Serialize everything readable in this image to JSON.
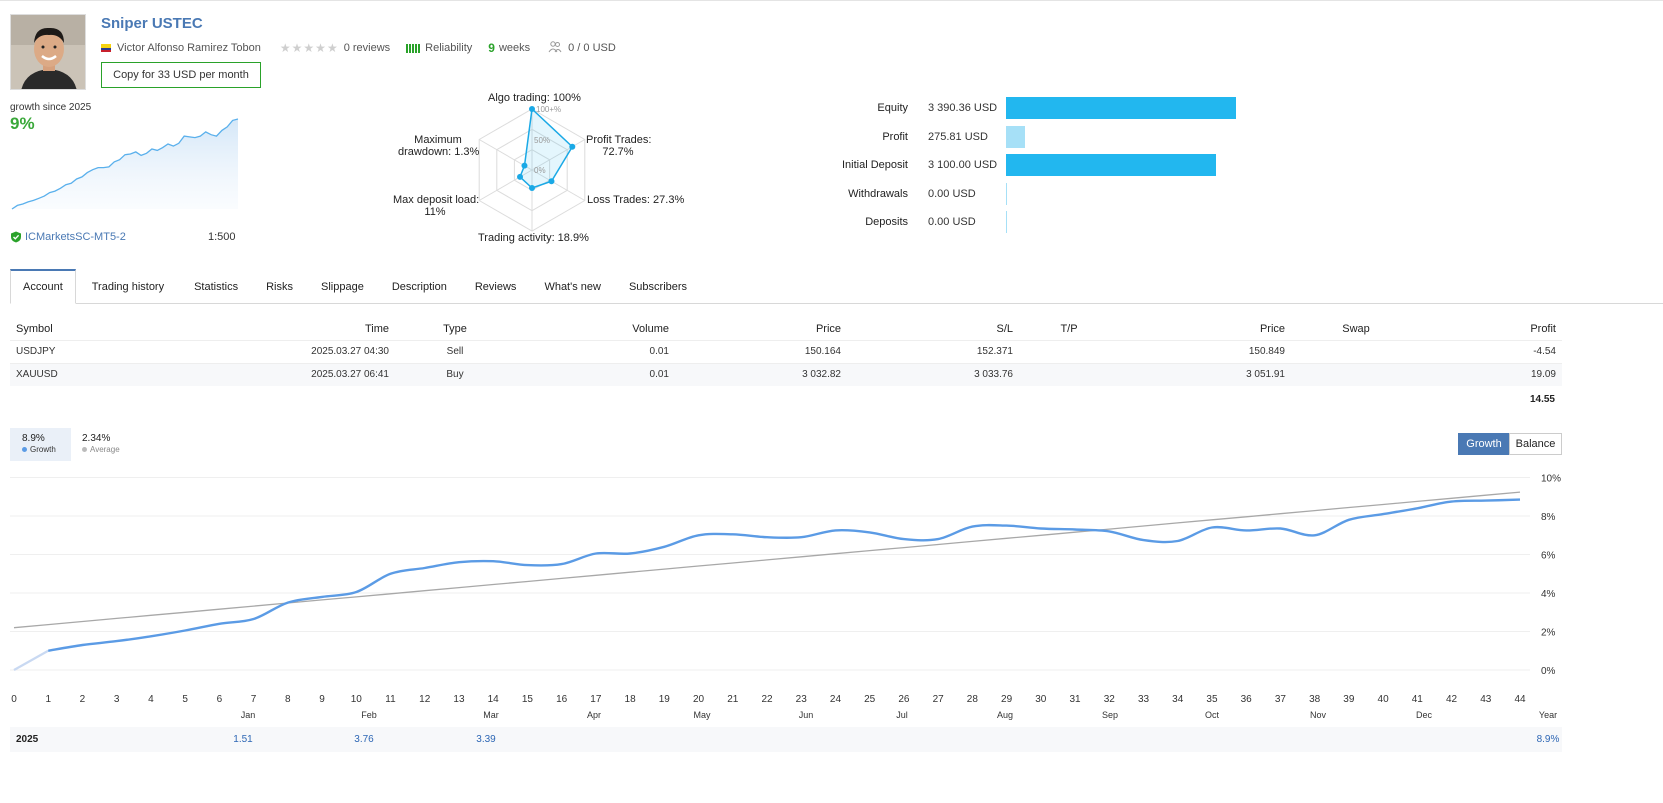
{
  "header": {
    "title": "Sniper USTEC",
    "author": "Victor Alfonso Ramirez Tobon",
    "reviews": "0 reviews",
    "reliability_label": "Reliability",
    "weeks_num": "9",
    "weeks_label": "weeks",
    "subscribers_funds": "0 / 0 USD",
    "copy_button": "Copy for 33 USD per month"
  },
  "summary": {
    "growth_since": "growth since 2025",
    "growth_value": "9%",
    "server": "ICMarketsSC-MT5-2",
    "leverage": "1:500",
    "mini_growth": [
      0.0,
      0.25,
      0.35,
      0.5,
      0.6,
      0.75,
      0.9,
      1.15,
      1.25,
      1.45,
      1.7,
      1.8,
      2.1,
      2.25,
      2.55,
      2.75,
      2.9,
      2.9,
      2.95,
      3.3,
      3.45,
      3.8,
      3.85,
      4.0,
      3.75,
      3.9,
      4.2,
      4.1,
      4.3,
      4.55,
      4.4,
      4.6,
      5.1,
      5.05,
      5.0,
      5.1,
      5.4,
      5.2,
      5.1,
      5.5,
      5.75,
      6.2,
      6.3
    ]
  },
  "radar": {
    "labels": {
      "algo": "Algo trading: 100%",
      "profit_trades": [
        "Profit Trades:",
        "72.7%"
      ],
      "loss_trades": "Loss Trades: 27.3%",
      "activity": "Trading activity: 18.9%",
      "deposit_load": [
        "Max deposit load:",
        "11%"
      ],
      "drawdown": [
        "Maximum",
        "drawdown: 1.3%"
      ]
    },
    "scale": [
      "100+%",
      "50%",
      "0%"
    ],
    "values_pct": [
      100,
      72.7,
      27.3,
      18.9,
      11,
      1.3
    ]
  },
  "stats": [
    {
      "label": "Equity",
      "value": "3 390.36 USD",
      "amount": 3390.36,
      "color": "#22b7ef"
    },
    {
      "label": "Profit",
      "value": "275.81 USD",
      "amount": 275.81,
      "color": "#a6e0f7"
    },
    {
      "label": "Initial Deposit",
      "value": "3 100.00 USD",
      "amount": 3100.0,
      "color": "#22b7ef"
    },
    {
      "label": "Withdrawals",
      "value": "0.00 USD",
      "amount": 0,
      "color": "#a6e0f7"
    },
    {
      "label": "Deposits",
      "value": "0.00 USD",
      "amount": 0,
      "color": "#a6e0f7"
    }
  ],
  "tabs": [
    "Account",
    "Trading history",
    "Statistics",
    "Risks",
    "Slippage",
    "Description",
    "Reviews",
    "What's new",
    "Subscribers"
  ],
  "positions": {
    "columns": [
      "Symbol",
      "Time",
      "Type",
      "Volume",
      "Price",
      "S/L",
      "T/P",
      "Price",
      "Swap",
      "Profit"
    ],
    "rows": [
      [
        "USDJPY",
        "2025.03.27 04:30",
        "Sell",
        "0.01",
        "150.164",
        "152.371",
        "",
        "150.849",
        "",
        "-4.54"
      ],
      [
        "XAUUSD",
        "2025.03.27 06:41",
        "Buy",
        "0.01",
        "3 032.82",
        "3 033.76",
        "",
        "3 051.91",
        "",
        "19.09"
      ]
    ],
    "total": "14.55"
  },
  "growth_chart": {
    "legend": {
      "growth_value": "8.9%",
      "growth_label": "Growth",
      "avg_value": "2.34%",
      "avg_label": "Average"
    },
    "buttons": {
      "growth": "Growth",
      "balance": "Balance"
    },
    "colors": {
      "growth": "#5b9be5",
      "average": "#a8a8a8",
      "active_button": "#4a79b4"
    }
  },
  "chart_data": {
    "type": "line",
    "x": [
      0,
      1,
      2,
      3,
      4,
      5,
      6,
      7,
      8,
      9,
      10,
      11,
      12,
      13,
      14,
      15,
      16,
      17,
      18,
      19,
      20,
      21,
      22,
      23,
      24,
      25,
      26,
      27,
      28,
      29,
      30,
      31,
      32,
      33,
      34,
      35,
      36,
      37,
      38,
      39,
      40,
      41,
      42,
      43,
      44
    ],
    "series": [
      {
        "name": "Growth",
        "values": [
          0.0,
          1.0,
          1.3,
          1.5,
          1.75,
          2.05,
          2.4,
          2.65,
          3.5,
          3.8,
          4.05,
          5.0,
          5.3,
          5.6,
          5.65,
          5.45,
          5.5,
          6.05,
          6.05,
          6.4,
          7.0,
          7.05,
          6.9,
          6.9,
          7.25,
          7.15,
          6.8,
          6.8,
          7.45,
          7.5,
          7.35,
          7.3,
          7.2,
          6.75,
          6.7,
          7.4,
          7.25,
          7.35,
          7.0,
          7.8,
          8.1,
          8.4,
          8.75,
          8.8,
          8.85
        ]
      },
      {
        "name": "Average",
        "values": [
          2.2,
          2.36,
          2.52,
          2.68,
          2.84,
          3.0,
          3.16,
          3.32,
          3.48,
          3.64,
          3.8,
          3.96,
          4.12,
          4.28,
          4.44,
          4.6,
          4.76,
          4.92,
          5.08,
          5.24,
          5.4,
          5.56,
          5.72,
          5.88,
          6.04,
          6.2,
          6.36,
          6.52,
          6.68,
          6.84,
          7.0,
          7.16,
          7.32,
          7.48,
          7.64,
          7.8,
          7.96,
          8.12,
          8.28,
          8.44,
          8.6,
          8.76,
          8.92,
          9.08,
          9.24
        ]
      }
    ],
    "y_ticks": [
      "10%",
      "8%",
      "6%",
      "4%",
      "2%",
      "0%"
    ],
    "ylim": [
      -1,
      10
    ],
    "xlim": [
      0,
      44
    ],
    "grid": true
  },
  "monthly": {
    "months": [
      "Jan",
      "Feb",
      "Mar",
      "Apr",
      "May",
      "Jun",
      "Jul",
      "Aug",
      "Sep",
      "Oct",
      "Nov",
      "Dec",
      "Year"
    ],
    "year": "2025",
    "values": [
      "1.51",
      "3.76",
      "3.39",
      "",
      "",
      "",
      "",
      "",
      "",
      "",
      "",
      "",
      "8.9%"
    ]
  }
}
